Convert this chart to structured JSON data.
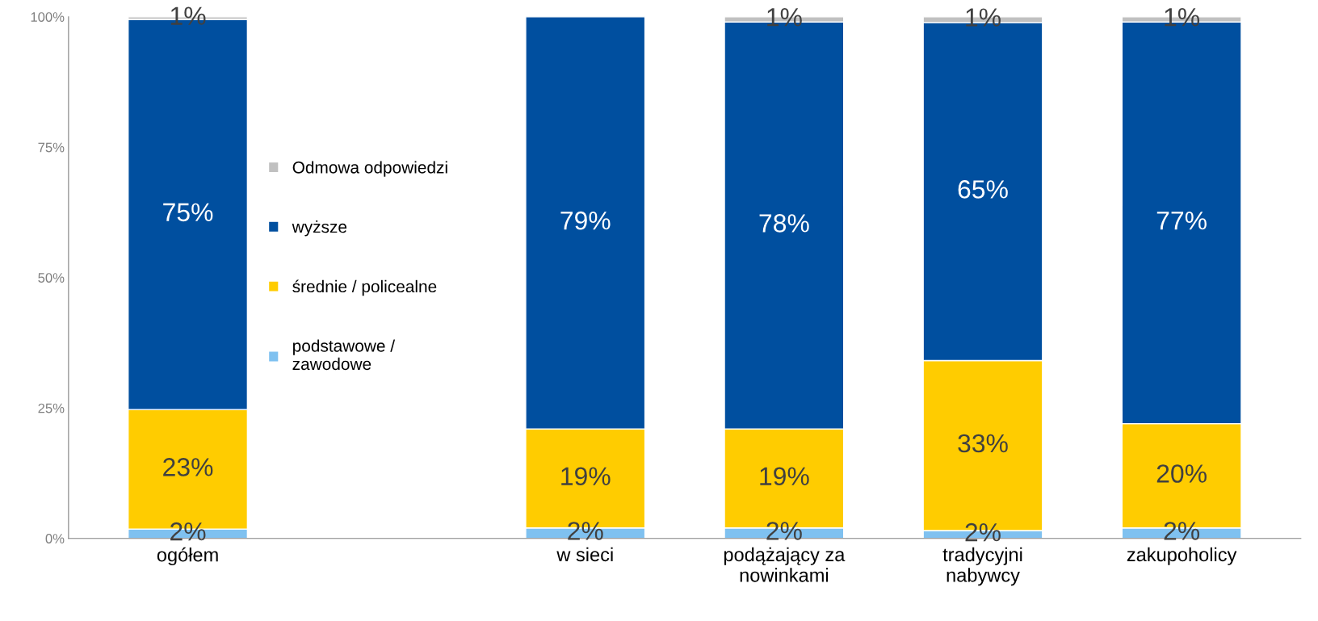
{
  "chart_data": {
    "type": "bar",
    "stacked": true,
    "categories": [
      "ogółem",
      null,
      "w sieci",
      "podążający za\nnowinkami",
      "tradycyjni\nnabywcy",
      "zakupoholicy"
    ],
    "series": [
      {
        "name": "podstawowe /\nzawodowe",
        "color": "#7fc1f0",
        "values": [
          1.8,
          null,
          2,
          2,
          1.5,
          2
        ],
        "value_labels": [
          "2%",
          null,
          "2%",
          "2%",
          "2%",
          "2%"
        ]
      },
      {
        "name": "średnie / policealne",
        "color": "#ffcc00",
        "values": [
          22.9,
          null,
          19,
          19,
          32.6,
          20
        ],
        "value_labels": [
          "23%",
          null,
          "19%",
          "19%",
          "33%",
          "20%"
        ]
      },
      {
        "name": "wyższe",
        "color": "#004f9f",
        "values": [
          74.8,
          null,
          79,
          78,
          64.8,
          77
        ],
        "value_labels": [
          "75%",
          null,
          "79%",
          "78%",
          "65%",
          "77%"
        ]
      },
      {
        "name": "Odmowa odpowiedzi",
        "color": "#c0c0c0",
        "values": [
          0.5,
          null,
          null,
          1,
          1.1,
          1
        ],
        "value_labels": [
          "1%",
          null,
          null,
          "1%",
          "1%",
          "1%"
        ]
      }
    ],
    "ylim": [
      0,
      100
    ],
    "yticks": [
      {
        "value": 0,
        "label": "0%"
      },
      {
        "value": 25,
        "label": "25%"
      },
      {
        "value": 50,
        "label": "50%"
      },
      {
        "value": 75,
        "label": "75%"
      },
      {
        "value": 100,
        "label": "100%"
      }
    ],
    "grid": false,
    "legend": "left"
  }
}
